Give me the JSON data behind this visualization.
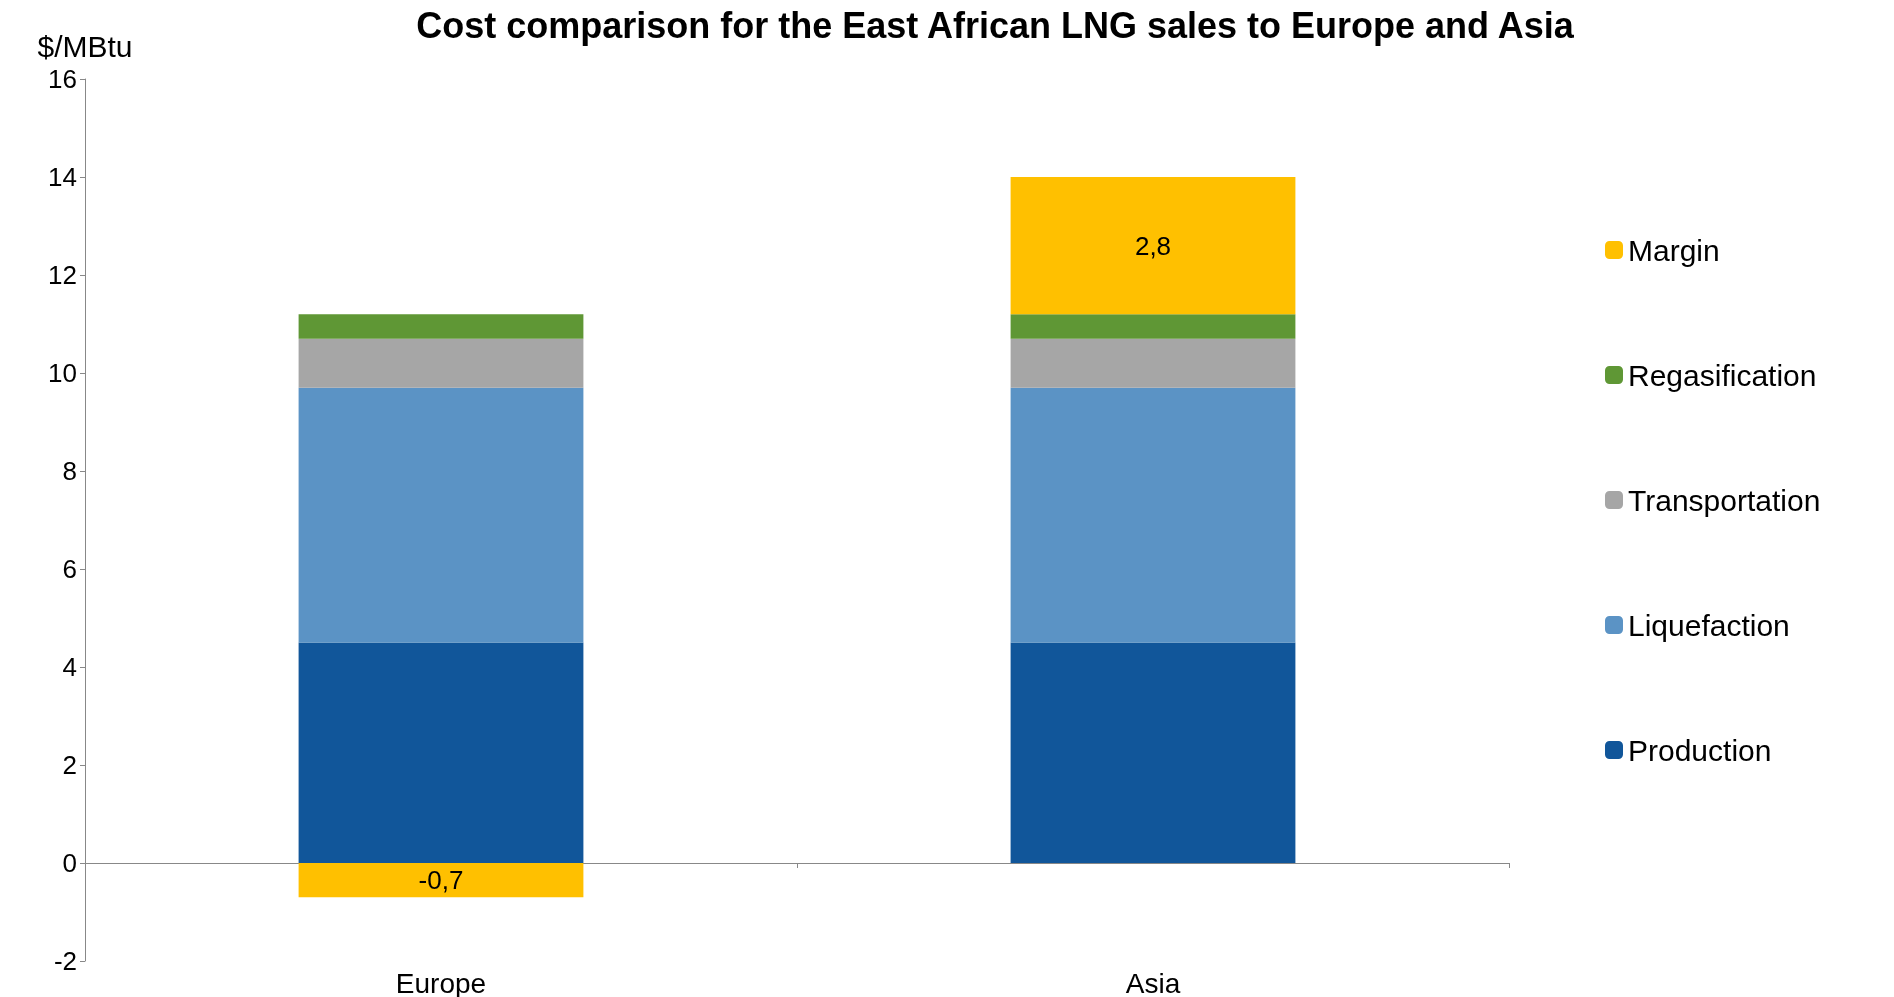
{
  "chart_data": {
    "type": "bar",
    "title": "Cost comparison for the East African LNG sales to Europe and Asia",
    "ylabel": "$/MBtu",
    "categories": [
      "Europe",
      "Asia"
    ],
    "stacked": true,
    "ylim": [
      -2,
      16
    ],
    "yticks": [
      -2,
      0,
      2,
      4,
      6,
      8,
      10,
      12,
      14,
      16
    ],
    "legend": "right",
    "series": [
      {
        "name": "Production",
        "color": "#11569a",
        "values": [
          4.5,
          4.5
        ]
      },
      {
        "name": "Liquefaction",
        "color": "#5b93c5",
        "values": [
          5.2,
          5.2
        ]
      },
      {
        "name": "Transportation",
        "color": "#a6a6a6",
        "values": [
          1.0,
          1.0
        ]
      },
      {
        "name": "Regasification",
        "color": "#5f9735",
        "values": [
          0.5,
          0.5
        ]
      },
      {
        "name": "Margin",
        "color": "#ffc000",
        "values": [
          -0.7,
          2.8
        ],
        "value_labels": [
          "-0,7",
          "2,8"
        ]
      }
    ]
  }
}
